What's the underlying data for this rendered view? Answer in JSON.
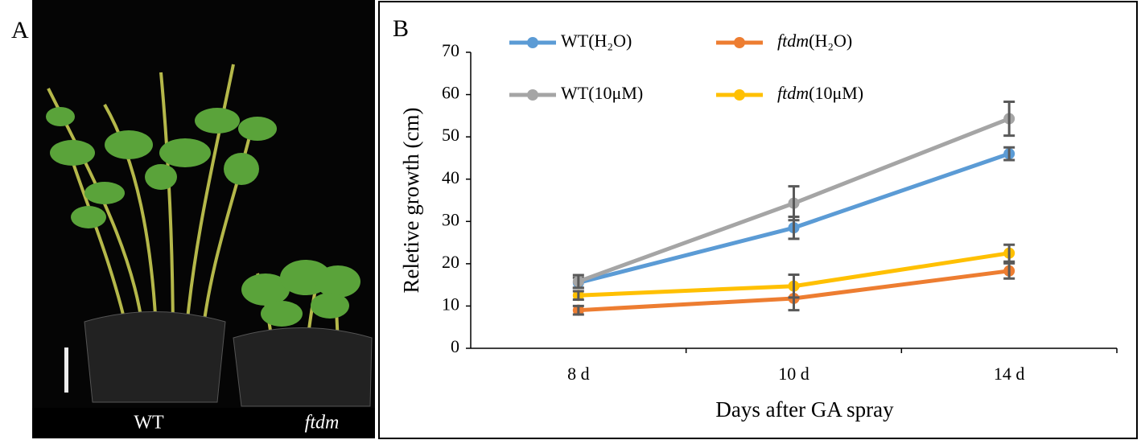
{
  "panel_a": {
    "label": "A",
    "captions": [
      "WT",
      "ftdm"
    ]
  },
  "chart_data": {
    "type": "line",
    "panel_label": "B",
    "x_label": "Days after GA spray",
    "y_label": "Reletive growth (cm)",
    "categories": [
      "8 d",
      "10 d",
      "14 d"
    ],
    "ylim": [
      0,
      70
    ],
    "yticks": [
      0,
      10,
      20,
      30,
      40,
      50,
      60,
      70
    ],
    "error_color": "#595959",
    "series": [
      {
        "name": "WT(H₂O)",
        "color": "#5b9bd5",
        "values": [
          15.5,
          28.5,
          46
        ],
        "errors": [
          1.2,
          2.6,
          1.5
        ]
      },
      {
        "name": "ftdm(H₂O)",
        "color": "#ed7d31",
        "values": [
          9,
          11.8,
          18.3
        ],
        "errors": [
          1,
          2.8,
          1.8
        ]
      },
      {
        "name": "WT(10μM)",
        "color": "#a5a5a5",
        "values": [
          15.8,
          34.3,
          54.3
        ],
        "errors": [
          1.5,
          4,
          4
        ]
      },
      {
        "name": "ftdm(10μM)",
        "color": "#ffc000",
        "values": [
          12.5,
          14.7,
          22.5
        ],
        "errors": [
          1,
          2.7,
          2
        ]
      }
    ]
  }
}
